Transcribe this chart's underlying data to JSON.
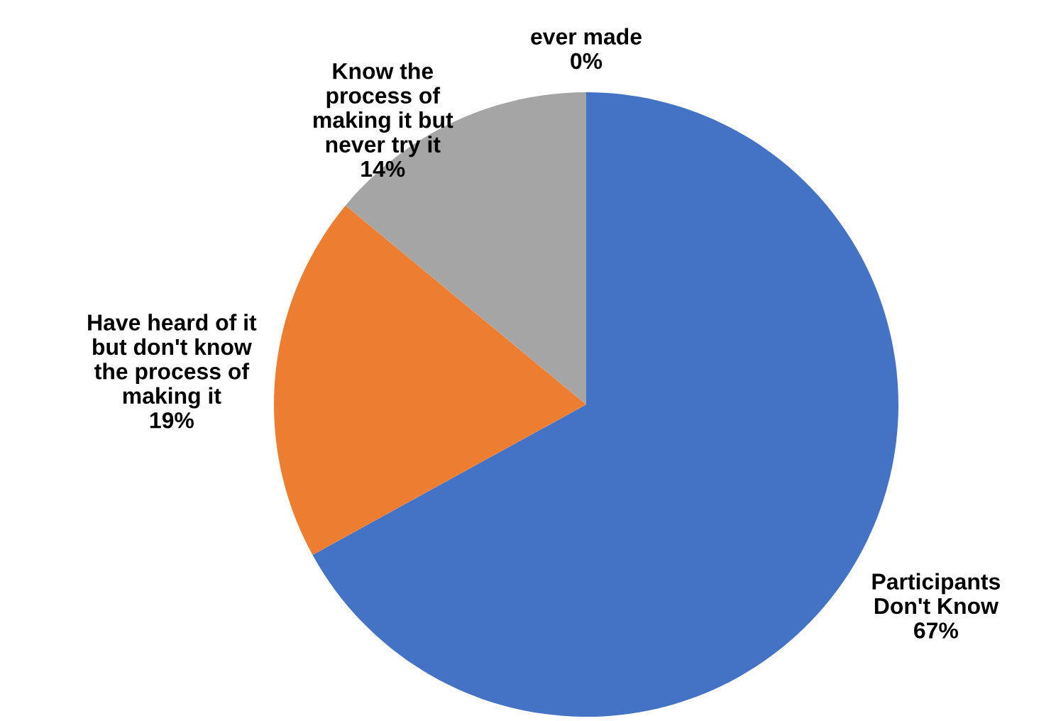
{
  "chart_data": {
    "type": "pie",
    "categories": [
      "Participants\nDon't Know",
      "Have heard of it\nbut don't know\nthe process of\nmaking it",
      "Know the\nprocess of\nmaking it but\nnever try it",
      "ever made"
    ],
    "values": [
      67,
      19,
      14,
      0
    ],
    "value_labels": [
      "67%",
      "19%",
      "14%",
      "0%"
    ],
    "colors": [
      "#4472c4",
      "#ed7d31",
      "#a5a5a5",
      "#ffc000"
    ]
  }
}
